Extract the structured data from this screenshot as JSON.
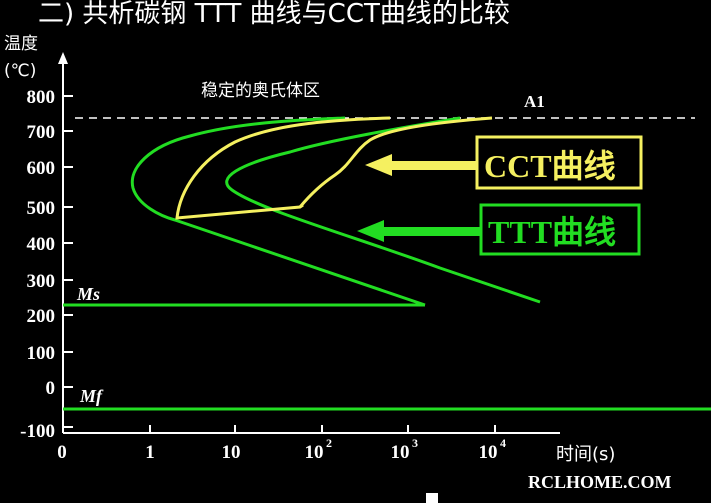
{
  "slide": {
    "title": "二) 共析碳钢 TTT 曲线与CCT曲线的比较",
    "y_axis_label_1": "温度",
    "y_axis_label_2": "(℃)",
    "x_axis_label": "时间(s)",
    "region_label": "稳定的奥氏体区",
    "a1_label": "A1",
    "ms_label": "Ms",
    "mf_label": "Mf",
    "cct_label": "CCT曲线",
    "ttt_label": "TTT曲线",
    "watermark": "RCLHOME.COM",
    "y_ticks": [
      "800",
      "700",
      "600",
      "500",
      "400",
      "300",
      "200",
      "100",
      "0",
      "-100"
    ],
    "x_ticks": [
      "0",
      "1",
      "10",
      "10",
      "10",
      "10"
    ],
    "x_tick_exps": [
      "",
      "",
      "",
      "2",
      "3",
      "4"
    ]
  },
  "colors": {
    "background": "#000000",
    "ttt": "#22dd22",
    "cct": "#f5f060",
    "text": "#ffffff"
  }
}
